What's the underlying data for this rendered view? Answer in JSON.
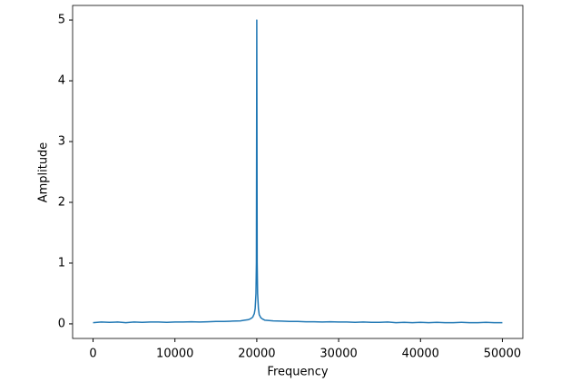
{
  "chart_data": {
    "type": "line",
    "x_label": "Frequency",
    "y_label": "Amplitude",
    "x": [
      0,
      1000,
      2000,
      3000,
      4000,
      5000,
      6000,
      7000,
      8000,
      9000,
      10000,
      11000,
      12000,
      13000,
      14000,
      15000,
      16000,
      17000,
      18000,
      18500,
      19000,
      19300,
      19500,
      19700,
      19800,
      19900,
      19950,
      20000,
      20050,
      20100,
      20200,
      20300,
      20500,
      20700,
      21000,
      21500,
      22000,
      23000,
      24000,
      25000,
      26000,
      27000,
      28000,
      29000,
      30000,
      31000,
      32000,
      33000,
      34000,
      35000,
      36000,
      37000,
      38000,
      39000,
      40000,
      41000,
      42000,
      43000,
      44000,
      45000,
      46000,
      47000,
      48000,
      49000,
      50000
    ],
    "series": [
      {
        "color": "#1f77b4",
        "values": [
          0.02,
          0.03,
          0.025,
          0.03,
          0.02,
          0.03,
          0.025,
          0.03,
          0.03,
          0.025,
          0.03,
          0.03,
          0.035,
          0.03,
          0.035,
          0.04,
          0.04,
          0.045,
          0.05,
          0.06,
          0.07,
          0.09,
          0.11,
          0.17,
          0.25,
          0.5,
          1.0,
          5.0,
          1.0,
          0.5,
          0.25,
          0.15,
          0.1,
          0.08,
          0.06,
          0.055,
          0.05,
          0.045,
          0.04,
          0.04,
          0.035,
          0.035,
          0.03,
          0.035,
          0.03,
          0.03,
          0.025,
          0.03,
          0.025,
          0.025,
          0.03,
          0.02,
          0.025,
          0.02,
          0.025,
          0.02,
          0.025,
          0.02,
          0.02,
          0.025,
          0.02,
          0.02,
          0.025,
          0.02,
          0.02
        ]
      }
    ],
    "xlim": [
      -2500,
      52500
    ],
    "ylim": [
      -0.24,
      5.24
    ],
    "xticks": [
      0,
      10000,
      20000,
      30000,
      40000,
      50000
    ],
    "yticks": [
      0,
      1,
      2,
      3,
      4,
      5
    ],
    "grid": false
  }
}
